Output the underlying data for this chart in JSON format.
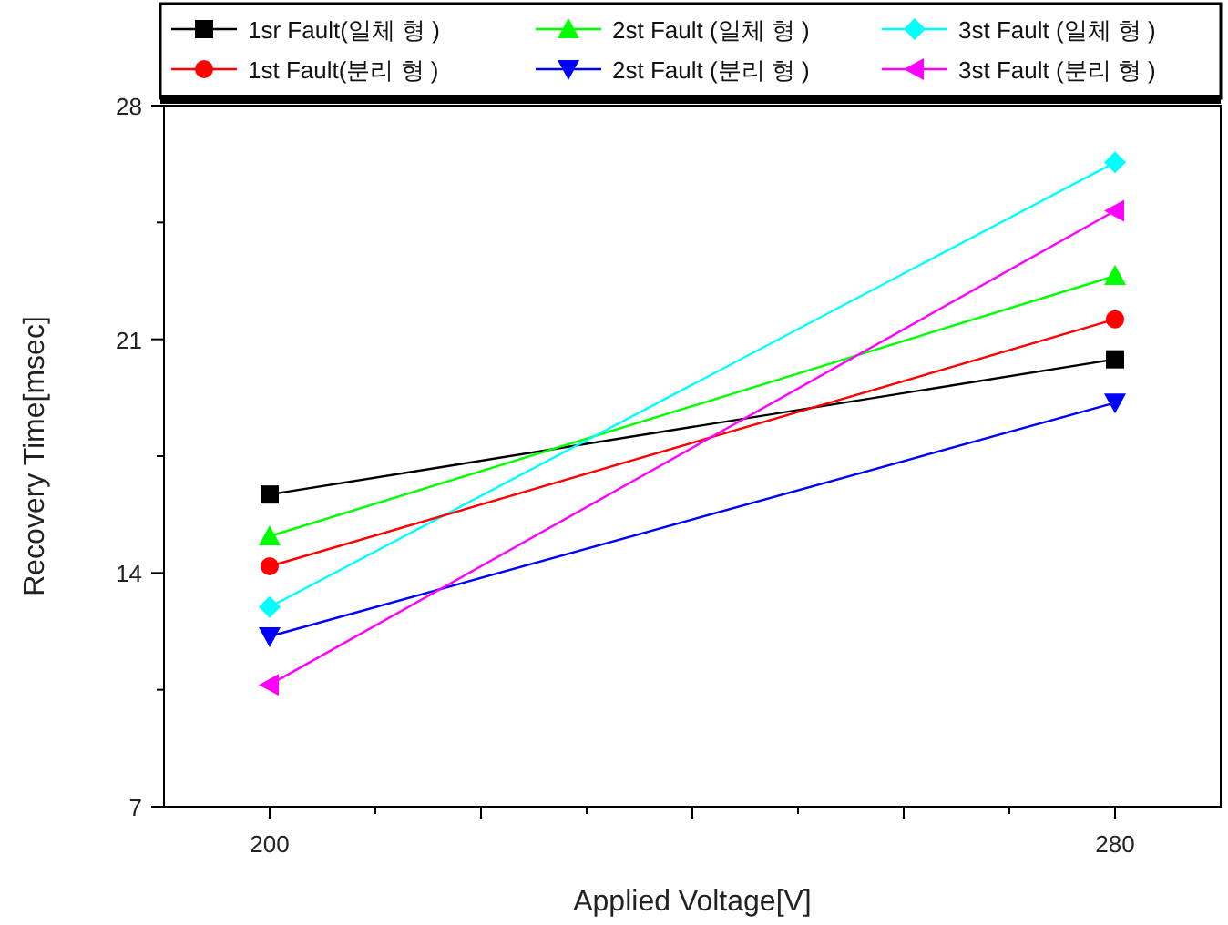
{
  "chart_data": {
    "type": "line",
    "xlabel": "Applied Voltage[V]",
    "ylabel": "Recovery Time[msec]",
    "x": [
      200,
      280
    ],
    "xlim": [
      190,
      290
    ],
    "xticks": [
      200,
      {
        "value": 210,
        "label": null
      },
      {
        "value": 220,
        "label": null
      },
      {
        "value": 230,
        "label": null
      },
      {
        "value": 240,
        "label": null
      },
      {
        "value": 250,
        "label": null
      },
      {
        "value": 260,
        "label": null
      },
      {
        "value": 270,
        "label": null
      },
      280
    ],
    "ylim": [
      7,
      28
    ],
    "yticks": [
      7,
      {
        "value": 10.5,
        "label": null
      },
      14,
      {
        "value": 17.5,
        "label": null
      },
      21,
      {
        "value": 24.5,
        "label": null
      },
      28
    ],
    "grid": false,
    "legend": "top",
    "line_style": "solid",
    "series": [
      {
        "name": "1sr Fault(일체 형 )",
        "color": "#000000",
        "marker": "square",
        "values": [
          16.35,
          20.4
        ]
      },
      {
        "name": "2st Fault (일체 형 )",
        "color": "#00ff00",
        "marker": "triangle",
        "values": [
          15.1,
          22.9
        ]
      },
      {
        "name": "3st Fault (일체 형 )",
        "color": "#00ffff",
        "marker": "diamond",
        "values": [
          12.98,
          26.3
        ]
      },
      {
        "name": "1st Fault(분리 형 )",
        "color": "#ff0000",
        "marker": "circle",
        "values": [
          14.2,
          21.6
        ]
      },
      {
        "name": "2st Fault (분리 형 )",
        "color": "#0000ff",
        "marker": "triangle-down",
        "values": [
          12.1,
          19.1
        ]
      },
      {
        "name": "3st Fault (분리 형 )",
        "color": "#ff00ff",
        "marker": "triangle-left",
        "values": [
          10.65,
          24.85
        ]
      }
    ]
  }
}
